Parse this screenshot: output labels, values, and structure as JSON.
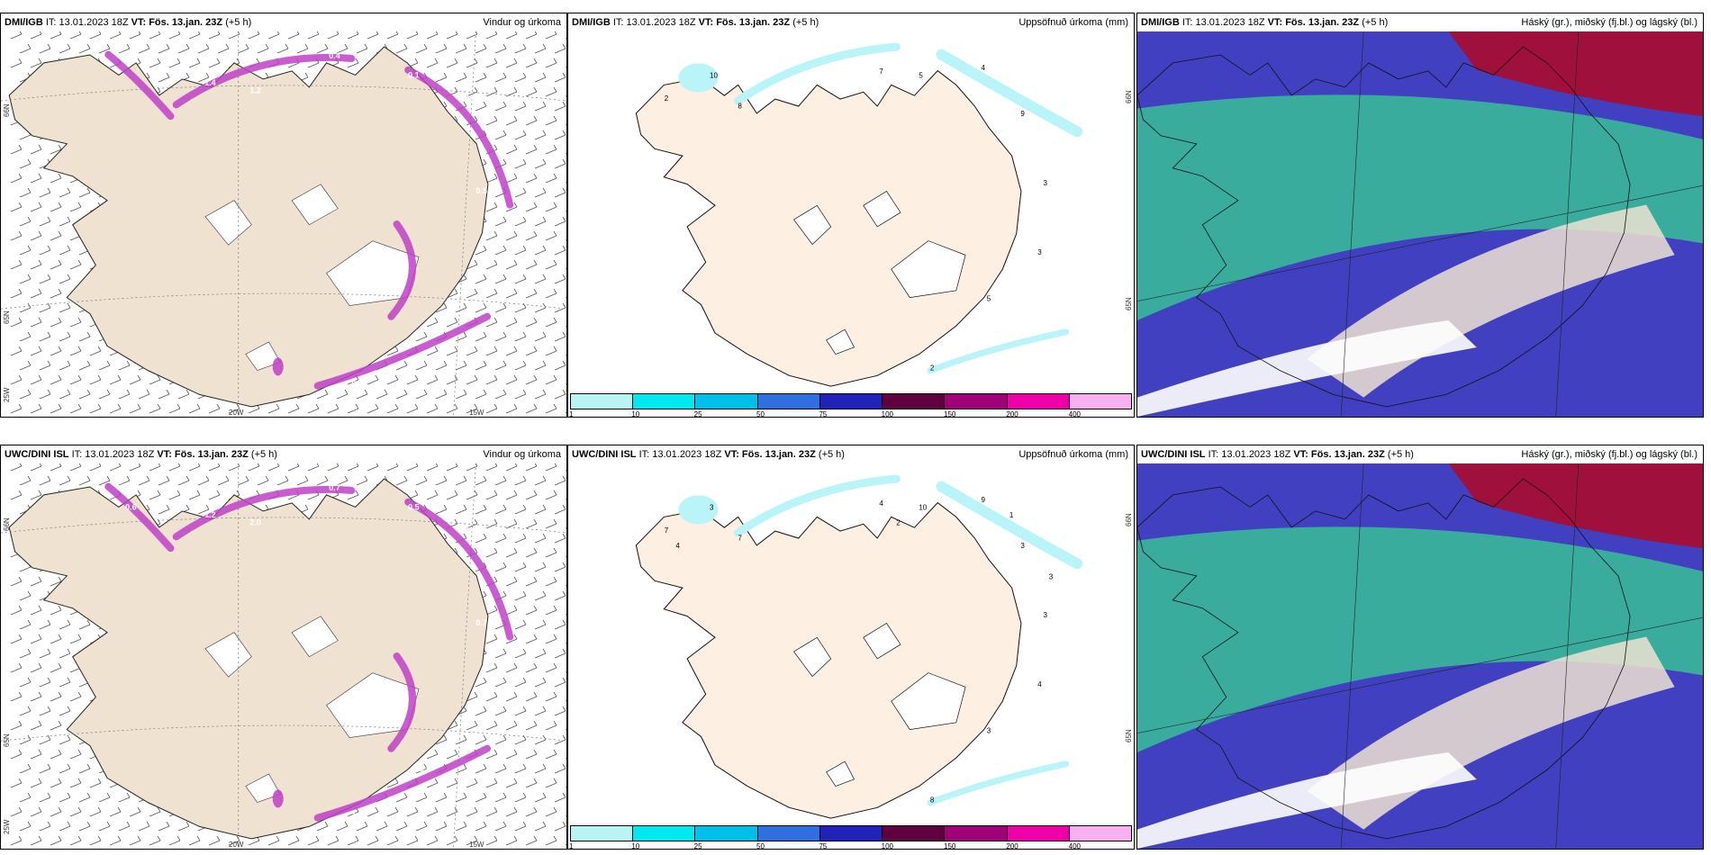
{
  "panels": [
    {
      "source": "DMI/IGB",
      "it": "IT: 13.01.2023 18Z",
      "vt_label": "VT:",
      "vt_value": "Fös. 13.jan. 23Z",
      "lead": "(+5 h)",
      "field": "Vindur og úrkoma",
      "kind": "wind",
      "contours": [
        "0.4",
        "0.1",
        "1.2",
        "1.4",
        "0.5",
        "0.5",
        "0.1"
      ],
      "axis_labels": {
        "left_top": "66N",
        "left_mid": "65N",
        "left_bot": "25W",
        "bot_1": "20W",
        "bot_2": "15W",
        "right_mid": ""
      }
    },
    {
      "source": "DMI/IGB",
      "it": "IT: 13.01.2023 18Z",
      "vt_label": "VT:",
      "vt_value": "Fös. 13.jan. 23Z",
      "lead": "(+5 h)",
      "field": "Uppsöfnuð úrkoma (mm)",
      "kind": "precip",
      "numbers": [
        "10",
        "2",
        "8",
        "7",
        "5",
        "4",
        "9",
        "3",
        "3",
        "5",
        "2"
      ],
      "axis_labels": {
        "right_top": "66N",
        "right_mid": "65N"
      }
    },
    {
      "source": "DMI/IGB",
      "it": "IT: 13.01.2023 18Z",
      "vt_label": "VT:",
      "vt_value": "Fös. 13.jan. 23Z",
      "lead": "(+5 h)",
      "field": "Háský (gr.), miðský (fj.bl.) og lágský (bl.)",
      "kind": "cloud"
    },
    {
      "source": "UWC/DINI ISL",
      "it": "IT: 13.01.2023 18Z",
      "vt_label": "VT:",
      "vt_value": "Fös. 13.jan. 23Z",
      "lead": "(+5 h)",
      "field": "Vindur og úrkoma",
      "kind": "wind",
      "contours": [
        "0.7",
        "0.5",
        "2.0",
        "1.2",
        "0.6",
        "0.7",
        "1.0",
        "0.5",
        "0.6"
      ],
      "axis_labels": {
        "left_top": "66N",
        "left_mid": "65N",
        "left_bot": "25W",
        "bot_1": "20W",
        "bot_2": "15W",
        "right_mid": ""
      }
    },
    {
      "source": "UWC/DINI ISL",
      "it": "IT: 13.01.2023 18Z",
      "vt_label": "VT:",
      "vt_value": "Fös. 13.jan. 23Z",
      "lead": "(+5 h)",
      "field": "Uppsöfnuð úrkoma (mm)",
      "kind": "precip",
      "numbers": [
        "3",
        "7",
        "7",
        "4",
        "10",
        "9",
        "3",
        "3",
        "4",
        "3",
        "8",
        "2",
        "1",
        "4",
        "3"
      ],
      "axis_labels": {
        "right_top": "66N",
        "right_mid": "65N"
      }
    },
    {
      "source": "UWC/DINI ISL",
      "it": "IT: 13.01.2023 18Z",
      "vt_label": "VT:",
      "vt_value": "Fös. 13.jan. 23Z",
      "lead": "(+5 h)",
      "field": "Háský (gr.), miðský (fj.bl.) og lágský (bl.)",
      "kind": "cloud"
    }
  ],
  "legend": {
    "ticks": [
      "1",
      "10",
      "25",
      "50",
      "75",
      "100",
      "150",
      "200",
      "400"
    ],
    "colors": [
      "#b8f4f4",
      "#00e8f0",
      "#00bfe8",
      "#2f6fe0",
      "#2222b8",
      "#600040",
      "#a00078",
      "#f000a8",
      "#f8b0f0"
    ]
  },
  "colors": {
    "land_wind": "#efe2d1",
    "land_precip": "#fdf0e2",
    "precip_purple": "#c040c8",
    "precip_cyan": "#b8f4f8",
    "cloud_high": "#3ab89a",
    "cloud_mid": "#4040c0",
    "cloud_low": "#a0103c"
  }
}
